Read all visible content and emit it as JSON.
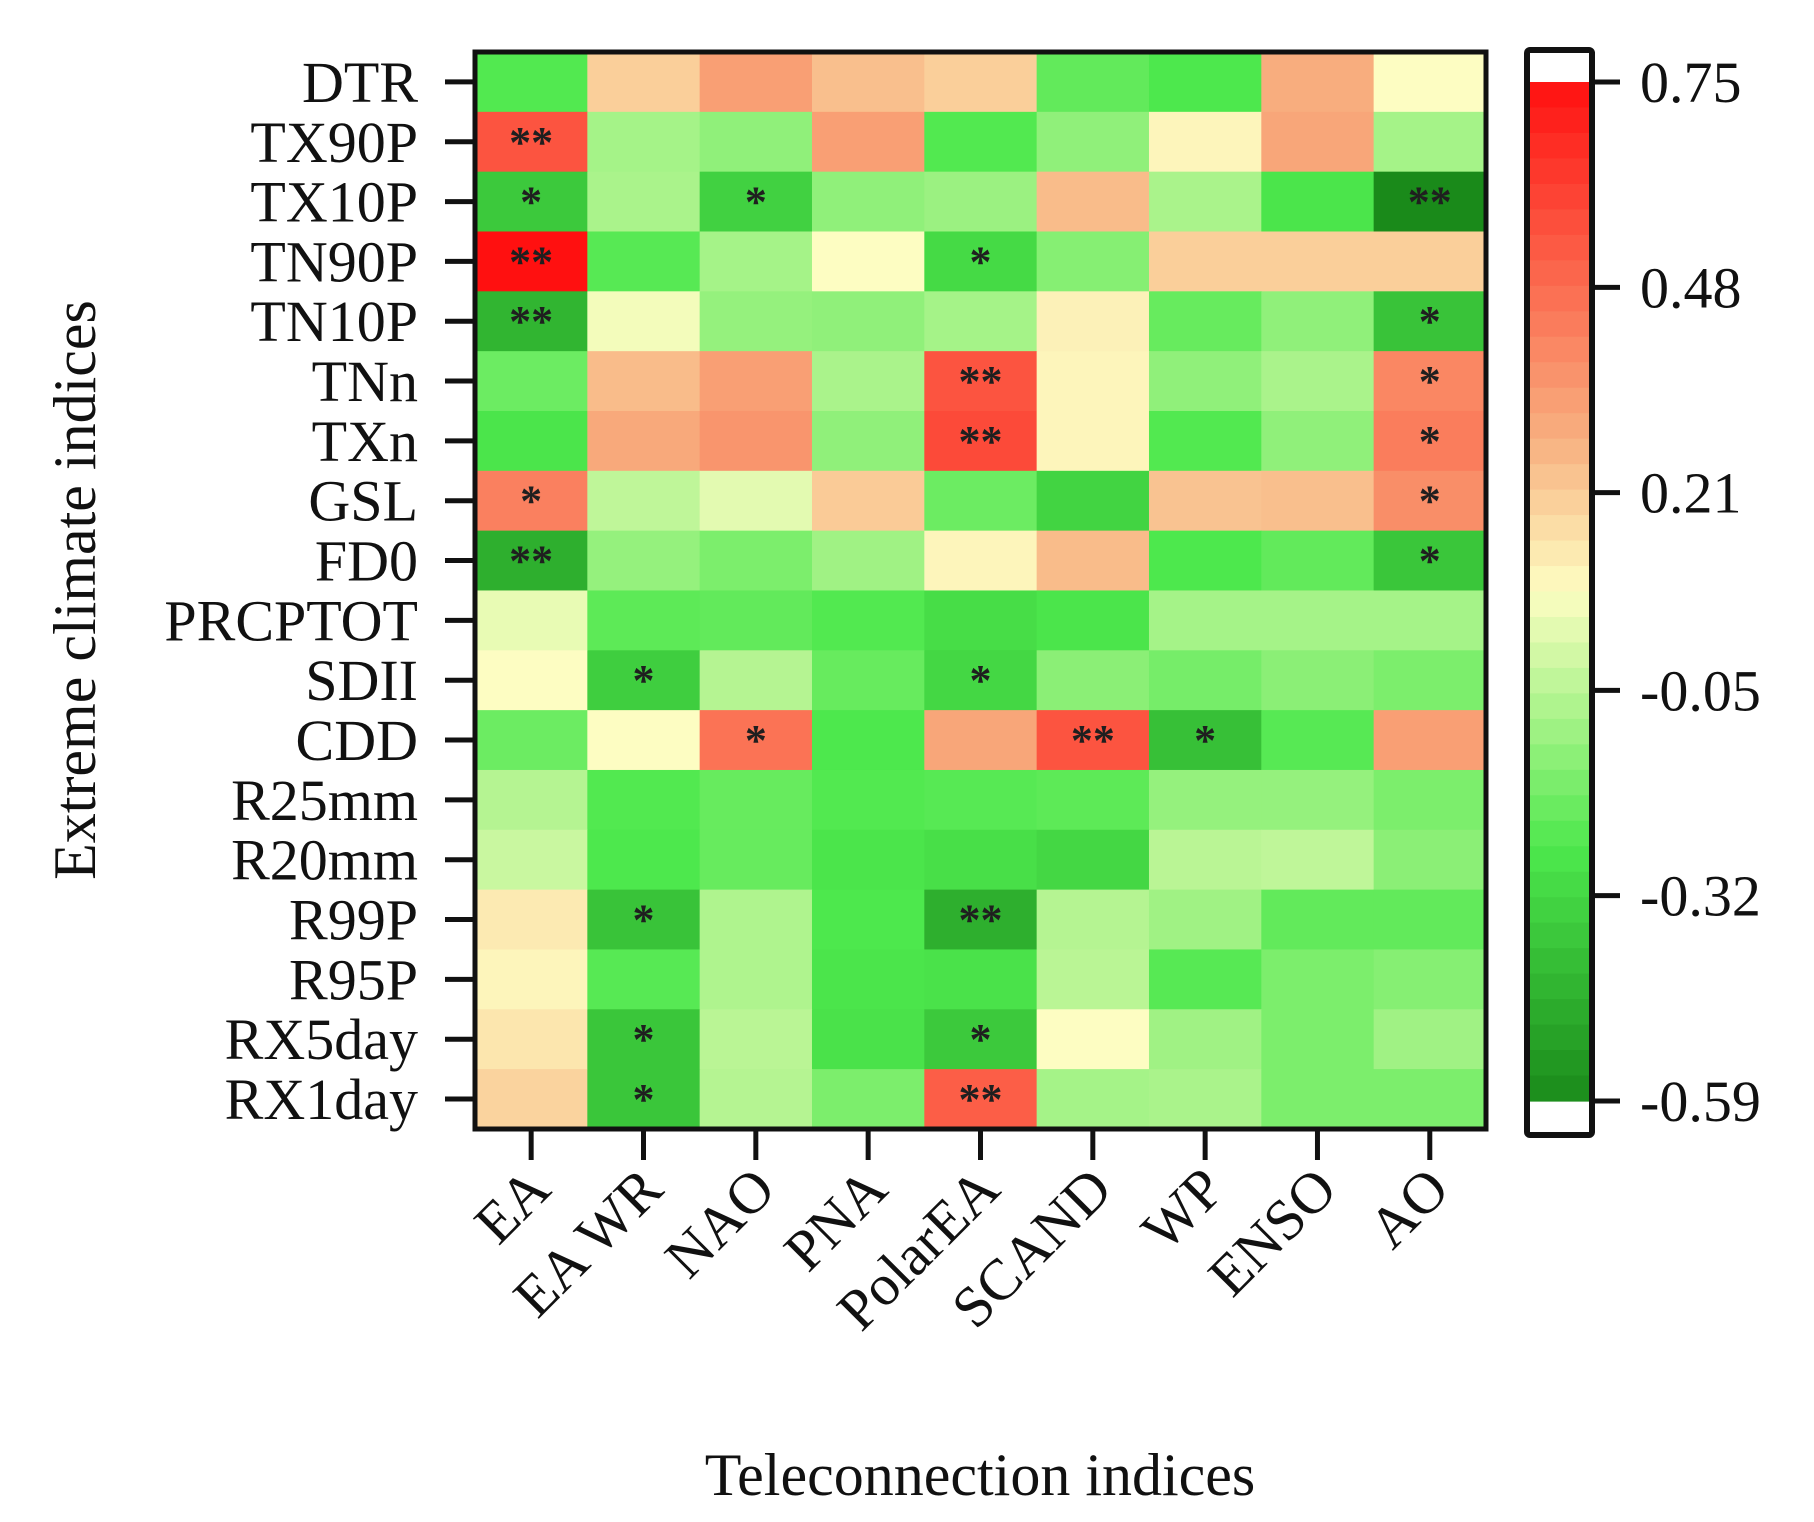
{
  "chart_data": {
    "type": "heatmap",
    "xlabel": "Teleconnection indices",
    "ylabel": "Extreme climate indices",
    "columns": [
      "EA",
      "EA WR",
      "NAO",
      "PNA",
      "PolarEA",
      "SCAND",
      "WP",
      "ENSO",
      "AO"
    ],
    "rows": [
      "DTR",
      "TX90P",
      "TX10P",
      "TN90P",
      "TN10P",
      "TNn",
      "TXn",
      "GSL",
      "FD0",
      "PRCPTOT",
      "SDII",
      "CDD",
      "R25mm",
      "R20mm",
      "R99P",
      "R95P",
      "RX5day",
      "RX1day"
    ],
    "values": [
      [
        -0.25,
        0.2,
        0.33,
        0.24,
        0.2,
        -0.22,
        -0.26,
        0.29,
        0.08
      ],
      [
        0.55,
        -0.09,
        -0.13,
        0.33,
        -0.25,
        -0.13,
        0.1,
        0.31,
        -0.09
      ],
      [
        -0.37,
        -0.08,
        -0.34,
        -0.13,
        -0.11,
        0.25,
        -0.08,
        -0.27,
        -0.59
      ],
      [
        0.75,
        -0.24,
        -0.09,
        0.08,
        -0.31,
        -0.15,
        0.2,
        0.2,
        0.2
      ],
      [
        -0.44,
        0.06,
        -0.12,
        -0.13,
        -0.09,
        0.11,
        -0.21,
        -0.13,
        -0.39
      ],
      [
        -0.2,
        0.25,
        0.33,
        -0.08,
        0.55,
        0.1,
        -0.13,
        -0.08,
        0.4
      ],
      [
        -0.27,
        0.3,
        0.36,
        -0.13,
        0.58,
        0.1,
        -0.25,
        -0.13,
        0.43
      ],
      [
        0.42,
        -0.04,
        0.03,
        0.21,
        -0.2,
        -0.33,
        0.23,
        0.24,
        0.38
      ],
      [
        -0.46,
        -0.12,
        -0.17,
        -0.1,
        0.1,
        0.25,
        -0.26,
        -0.22,
        -0.38
      ],
      [
        0.04,
        -0.23,
        -0.22,
        -0.25,
        -0.3,
        -0.27,
        -0.09,
        -0.09,
        -0.09
      ],
      [
        0.08,
        -0.35,
        -0.06,
        -0.21,
        -0.32,
        -0.14,
        -0.18,
        -0.14,
        -0.17
      ],
      [
        -0.2,
        0.08,
        0.46,
        -0.26,
        0.31,
        0.55,
        -0.4,
        -0.24,
        0.33
      ],
      [
        -0.06,
        -0.25,
        -0.21,
        -0.25,
        -0.24,
        -0.23,
        -0.12,
        -0.12,
        -0.17
      ],
      [
        -0.02,
        -0.26,
        -0.21,
        -0.27,
        -0.29,
        -0.32,
        -0.05,
        -0.04,
        -0.14
      ],
      [
        0.13,
        -0.39,
        -0.07,
        -0.26,
        -0.46,
        -0.06,
        -0.1,
        -0.22,
        -0.22
      ],
      [
        0.1,
        -0.24,
        -0.07,
        -0.27,
        -0.28,
        -0.05,
        -0.24,
        -0.17,
        -0.15
      ],
      [
        0.14,
        -0.38,
        -0.05,
        -0.28,
        -0.37,
        0.08,
        -0.1,
        -0.17,
        -0.1
      ],
      [
        0.19,
        -0.38,
        -0.06,
        -0.17,
        0.52,
        -0.09,
        -0.08,
        -0.17,
        -0.17
      ]
    ],
    "significance": [
      [
        "",
        "",
        "",
        "",
        "",
        "",
        "",
        "",
        ""
      ],
      [
        "**",
        "",
        "",
        "",
        "",
        "",
        "",
        "",
        ""
      ],
      [
        "*",
        "",
        "*",
        "",
        "",
        "",
        "",
        "",
        "**"
      ],
      [
        "**",
        "",
        "",
        "",
        "*",
        "",
        "",
        "",
        ""
      ],
      [
        "**",
        "",
        "",
        "",
        "",
        "",
        "",
        "",
        "*"
      ],
      [
        "",
        "",
        "",
        "",
        "**",
        "",
        "",
        "",
        "*"
      ],
      [
        "",
        "",
        "",
        "",
        "**",
        "",
        "",
        "",
        "*"
      ],
      [
        "*",
        "",
        "",
        "",
        "",
        "",
        "",
        "",
        "*"
      ],
      [
        "**",
        "",
        "",
        "",
        "",
        "",
        "",
        "",
        "*"
      ],
      [
        "",
        "",
        "",
        "",
        "",
        "",
        "",
        "",
        ""
      ],
      [
        "",
        "*",
        "",
        "",
        "*",
        "",
        "",
        "",
        ""
      ],
      [
        "",
        "",
        "*",
        "",
        "",
        "**",
        "*",
        "",
        ""
      ],
      [
        "",
        "",
        "",
        "",
        "",
        "",
        "",
        "",
        ""
      ],
      [
        "",
        "",
        "",
        "",
        "",
        "",
        "",
        "",
        ""
      ],
      [
        "",
        "*",
        "",
        "",
        "**",
        "",
        "",
        "",
        ""
      ],
      [
        "",
        "",
        "",
        "",
        "",
        "",
        "",
        "",
        ""
      ],
      [
        "",
        "*",
        "",
        "",
        "*",
        "",
        "",
        "",
        ""
      ],
      [
        "",
        "*",
        "",
        "",
        "**",
        "",
        "",
        "",
        ""
      ]
    ],
    "colorbar": {
      "min": -0.59,
      "max": 0.75,
      "ticks": [
        "0.75",
        "0.48",
        "0.21",
        "-0.05",
        "-0.32",
        "-0.59"
      ],
      "colors": {
        "neg_end": "#1a8a1a",
        "neg_mid": "#4de84d",
        "neutral": "#fdfdc2",
        "pos_mid": "#f8b080",
        "pos_end": "#ff1010"
      }
    }
  }
}
